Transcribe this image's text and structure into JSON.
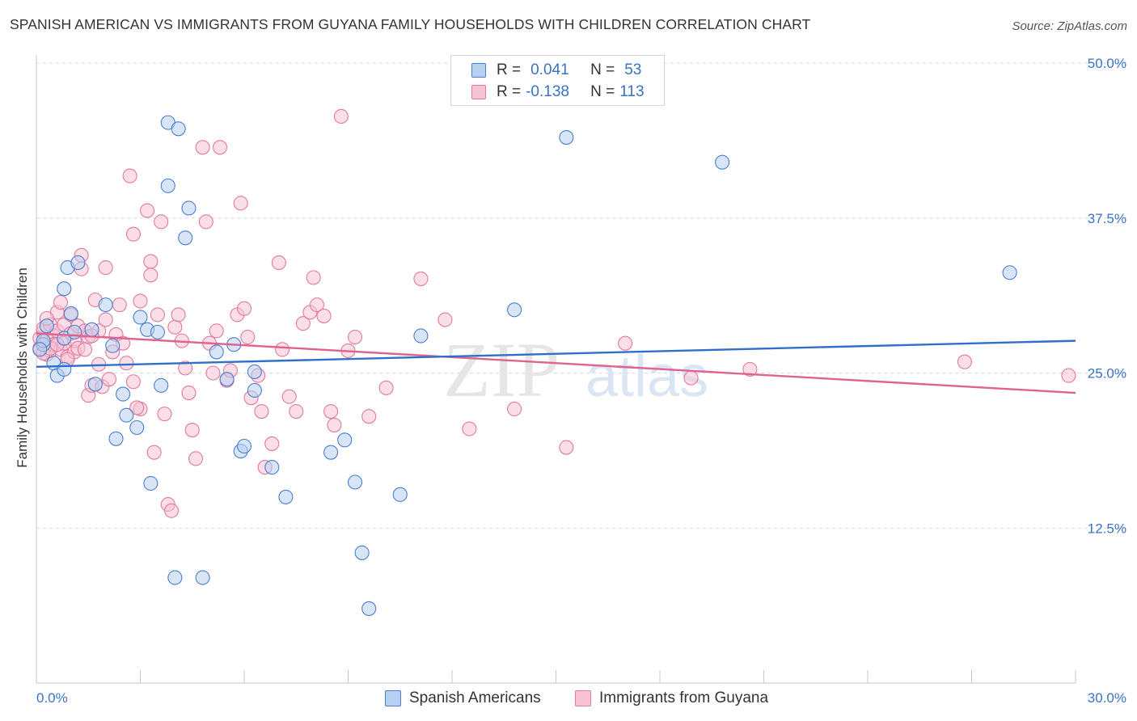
{
  "title": "SPANISH AMERICAN VS IMMIGRANTS FROM GUYANA FAMILY HOUSEHOLDS WITH CHILDREN CORRELATION CHART",
  "source": "Source: ZipAtlas.com",
  "watermark": {
    "zip": "ZIP",
    "atlas": "atlas"
  },
  "legend": {
    "r_label": "R =",
    "n_label": "N =",
    "series": [
      {
        "r": "0.041",
        "n": "53"
      },
      {
        "r": "-0.138",
        "n": "113"
      }
    ]
  },
  "colors": {
    "blue_fill": "#b8d0f0",
    "blue_stroke": "#4a7fcf",
    "blue_line": "#2f6fcb",
    "pink_fill": "#f8c3d4",
    "pink_stroke": "#e07a9e",
    "pink_line": "#e0628f",
    "axis_text": "#3a72c4",
    "grid": "#d8d8d8"
  },
  "chart_data": {
    "type": "scatter",
    "title": "SPANISH AMERICAN VS IMMIGRANTS FROM GUYANA FAMILY HOUSEHOLDS WITH CHILDREN CORRELATION CHART",
    "xlabel": "",
    "ylabel": "Family Households with Children",
    "xlim": [
      0,
      30
    ],
    "ylim": [
      0,
      50
    ],
    "x_tick_labels": [
      "0.0%",
      "30.0%"
    ],
    "y_ticks": [
      12.5,
      25.0,
      37.5,
      50.0
    ],
    "y_tick_labels": [
      "12.5%",
      "25.0%",
      "37.5%",
      "50.0%"
    ],
    "legend_position": "bottom",
    "series": [
      {
        "name": "Spanish Americans",
        "trend": [
          [
            0,
            25.5
          ],
          [
            30,
            27.6
          ]
        ],
        "points": [
          [
            0.2,
            27.3
          ],
          [
            0.3,
            28.8
          ],
          [
            0.2,
            27.6
          ],
          [
            0.5,
            25.8
          ],
          [
            0.6,
            24.8
          ],
          [
            0.8,
            25.3
          ],
          [
            0.8,
            27.8
          ],
          [
            0.9,
            33.5
          ],
          [
            0.8,
            31.8
          ],
          [
            1.0,
            29.8
          ],
          [
            1.1,
            28.3
          ],
          [
            1.2,
            33.9
          ],
          [
            1.6,
            28.5
          ],
          [
            1.7,
            24.1
          ],
          [
            2.0,
            30.5
          ],
          [
            2.2,
            27.2
          ],
          [
            2.5,
            23.3
          ],
          [
            2.3,
            19.7
          ],
          [
            2.6,
            21.6
          ],
          [
            2.9,
            20.6
          ],
          [
            3.0,
            29.5
          ],
          [
            3.2,
            28.5
          ],
          [
            3.3,
            16.1
          ],
          [
            3.5,
            28.3
          ],
          [
            3.6,
            24.0
          ],
          [
            3.8,
            40.1
          ],
          [
            3.8,
            45.2
          ],
          [
            4.1,
            44.7
          ],
          [
            4.4,
            38.3
          ],
          [
            4.3,
            35.9
          ],
          [
            4.0,
            8.5
          ],
          [
            4.8,
            8.5
          ],
          [
            5.2,
            26.7
          ],
          [
            5.5,
            24.5
          ],
          [
            5.9,
            18.7
          ],
          [
            5.7,
            27.3
          ],
          [
            6.0,
            19.1
          ],
          [
            6.3,
            25.1
          ],
          [
            6.3,
            23.6
          ],
          [
            6.8,
            17.4
          ],
          [
            7.2,
            15.0
          ],
          [
            8.5,
            18.6
          ],
          [
            8.9,
            19.6
          ],
          [
            9.2,
            16.2
          ],
          [
            9.4,
            10.5
          ],
          [
            9.6,
            6.0
          ],
          [
            10.5,
            15.2
          ],
          [
            11.1,
            28.0
          ],
          [
            13.8,
            30.1
          ],
          [
            15.3,
            44.0
          ],
          [
            19.8,
            42.0
          ],
          [
            28.1,
            33.1
          ],
          [
            0.1,
            26.9
          ]
        ]
      },
      {
        "name": "Immigrants from Guyana",
        "trend": [
          [
            0,
            28.2
          ],
          [
            30,
            23.4
          ]
        ],
        "points": [
          [
            0.1,
            27.8
          ],
          [
            0.2,
            28.3
          ],
          [
            0.1,
            27.0
          ],
          [
            0.3,
            26.5
          ],
          [
            0.2,
            28.6
          ],
          [
            0.3,
            27.7
          ],
          [
            0.4,
            28.9
          ],
          [
            0.4,
            26.8
          ],
          [
            0.5,
            28.0
          ],
          [
            0.5,
            27.3
          ],
          [
            0.6,
            29.9
          ],
          [
            0.6,
            28.4
          ],
          [
            0.7,
            30.7
          ],
          [
            0.7,
            26.9
          ],
          [
            0.8,
            27.4
          ],
          [
            0.8,
            28.9
          ],
          [
            0.9,
            26.3
          ],
          [
            1.0,
            28.2
          ],
          [
            1.0,
            29.7
          ],
          [
            1.1,
            26.7
          ],
          [
            1.1,
            27.6
          ],
          [
            1.2,
            28.8
          ],
          [
            1.3,
            33.4
          ],
          [
            1.3,
            34.5
          ],
          [
            1.4,
            28.4
          ],
          [
            1.5,
            27.9
          ],
          [
            1.5,
            23.2
          ],
          [
            1.6,
            24.0
          ],
          [
            1.7,
            30.9
          ],
          [
            1.8,
            28.4
          ],
          [
            1.8,
            25.7
          ],
          [
            1.9,
            23.9
          ],
          [
            2.0,
            33.5
          ],
          [
            2.0,
            29.3
          ],
          [
            2.1,
            24.5
          ],
          [
            2.2,
            26.7
          ],
          [
            2.3,
            28.1
          ],
          [
            2.4,
            30.5
          ],
          [
            2.5,
            27.4
          ],
          [
            2.6,
            25.8
          ],
          [
            2.7,
            40.9
          ],
          [
            2.8,
            36.2
          ],
          [
            2.8,
            24.3
          ],
          [
            3.0,
            30.8
          ],
          [
            3.0,
            22.1
          ],
          [
            3.2,
            38.1
          ],
          [
            3.3,
            34.0
          ],
          [
            3.3,
            32.9
          ],
          [
            3.4,
            18.6
          ],
          [
            3.5,
            29.7
          ],
          [
            3.6,
            37.2
          ],
          [
            3.7,
            21.7
          ],
          [
            3.8,
            14.4
          ],
          [
            3.9,
            13.9
          ],
          [
            4.0,
            28.7
          ],
          [
            4.1,
            29.7
          ],
          [
            4.2,
            27.6
          ],
          [
            4.3,
            25.4
          ],
          [
            4.4,
            23.4
          ],
          [
            4.5,
            20.4
          ],
          [
            4.6,
            18.1
          ],
          [
            4.8,
            43.2
          ],
          [
            4.9,
            37.2
          ],
          [
            5.0,
            27.4
          ],
          [
            5.1,
            25.0
          ],
          [
            5.2,
            28.4
          ],
          [
            5.3,
            43.2
          ],
          [
            5.5,
            24.4
          ],
          [
            5.6,
            25.2
          ],
          [
            5.8,
            29.7
          ],
          [
            5.9,
            38.7
          ],
          [
            6.0,
            30.2
          ],
          [
            6.1,
            27.9
          ],
          [
            6.2,
            23.0
          ],
          [
            6.4,
            24.8
          ],
          [
            6.5,
            21.9
          ],
          [
            6.6,
            17.4
          ],
          [
            6.8,
            19.3
          ],
          [
            7.0,
            33.9
          ],
          [
            7.1,
            26.9
          ],
          [
            7.3,
            23.1
          ],
          [
            7.5,
            21.9
          ],
          [
            7.7,
            29.0
          ],
          [
            7.9,
            29.9
          ],
          [
            8.0,
            32.7
          ],
          [
            8.1,
            30.5
          ],
          [
            8.3,
            29.6
          ],
          [
            8.5,
            21.9
          ],
          [
            8.6,
            20.8
          ],
          [
            8.8,
            45.7
          ],
          [
            9.0,
            26.8
          ],
          [
            9.2,
            27.9
          ],
          [
            9.6,
            21.5
          ],
          [
            10.1,
            23.8
          ],
          [
            11.1,
            32.6
          ],
          [
            11.8,
            29.3
          ],
          [
            12.5,
            20.5
          ],
          [
            13.8,
            22.1
          ],
          [
            15.3,
            19.0
          ],
          [
            17.0,
            27.4
          ],
          [
            18.9,
            24.6
          ],
          [
            20.6,
            25.3
          ],
          [
            26.8,
            25.9
          ],
          [
            29.8,
            24.8
          ],
          [
            0.2,
            26.6
          ],
          [
            0.4,
            27.0
          ],
          [
            0.6,
            27.3
          ],
          [
            0.9,
            26.1
          ],
          [
            1.2,
            27.0
          ],
          [
            1.4,
            26.9
          ],
          [
            1.6,
            28.0
          ],
          [
            2.9,
            22.2
          ],
          [
            0.3,
            29.4
          ]
        ]
      }
    ]
  }
}
